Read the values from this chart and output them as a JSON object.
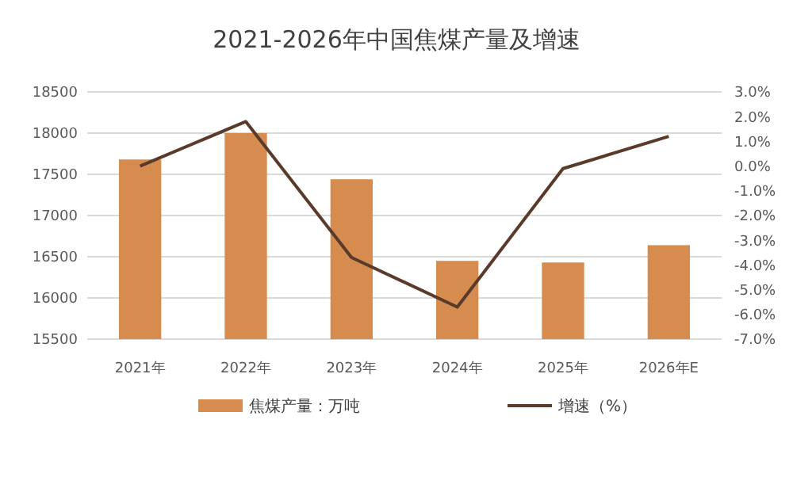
{
  "chart_data": {
    "type": "bar",
    "title": "2021-2026年中国焦煤产量及增速",
    "categories": [
      "2021年",
      "2022年",
      "2023年",
      "2024年",
      "2025年",
      "2026年E"
    ],
    "series": [
      {
        "name": "焦煤产量：万吨",
        "color": "#d68c4f",
        "values": [
          17680,
          18000,
          17440,
          16450,
          16430,
          16640
        ]
      },
      {
        "name": "增速（%）",
        "type": "line",
        "axis": "y2",
        "color": "#5a3a2a",
        "values": [
          0.0,
          1.8,
          -3.7,
          -5.7,
          -0.1,
          1.2
        ]
      }
    ],
    "ylim": [
      15500,
      18500
    ],
    "yticks": [
      15500,
      16000,
      16500,
      17000,
      17500,
      18000,
      18500
    ],
    "y2lim": [
      -7,
      3
    ],
    "y2ticks": [
      {
        "value": 3,
        "label": "3.0%"
      },
      {
        "value": 2,
        "label": "2.0%"
      },
      {
        "value": 1,
        "label": "1.0%"
      },
      {
        "value": 0,
        "label": "0.0%"
      },
      {
        "value": -1,
        "label": "-1.0%"
      },
      {
        "value": -2,
        "label": "-2.0%"
      },
      {
        "value": -3,
        "label": "-3.0%"
      },
      {
        "value": -4,
        "label": "-4.0%"
      },
      {
        "value": -5,
        "label": "-5.0%"
      },
      {
        "value": -6,
        "label": "-6.0%"
      },
      {
        "value": -7,
        "label": "-7.0%"
      }
    ],
    "grid": "y",
    "legend": "bottom",
    "marker": "none",
    "line_style": "solid"
  }
}
